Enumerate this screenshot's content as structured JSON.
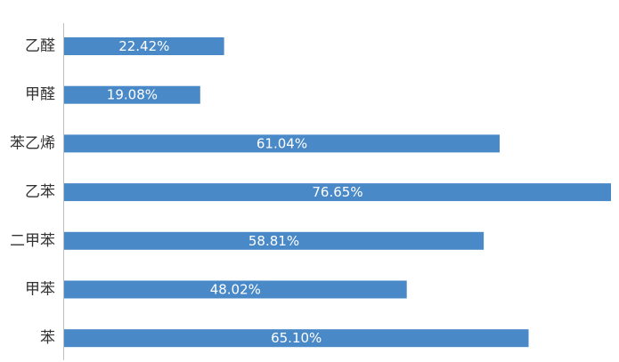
{
  "chart_data": {
    "type": "bar",
    "orientation": "horizontal",
    "categories": [
      "乙醛",
      "甲醛",
      "苯乙烯",
      "乙苯",
      "二甲苯",
      "甲苯",
      "苯"
    ],
    "values": [
      22.42,
      19.08,
      61.04,
      76.65,
      58.81,
      48.02,
      65.1
    ],
    "data_labels": [
      "22.42%",
      "19.08%",
      "61.04%",
      "76.65%",
      "58.81%",
      "48.02%",
      "65.10%"
    ],
    "title": "",
    "xlabel": "",
    "ylabel": "",
    "xlim": [
      0,
      76.65
    ],
    "unit": "%",
    "grid": false,
    "legend": "none",
    "bar_color": "#4a89c8",
    "axis_color": "#bfbfbf"
  }
}
